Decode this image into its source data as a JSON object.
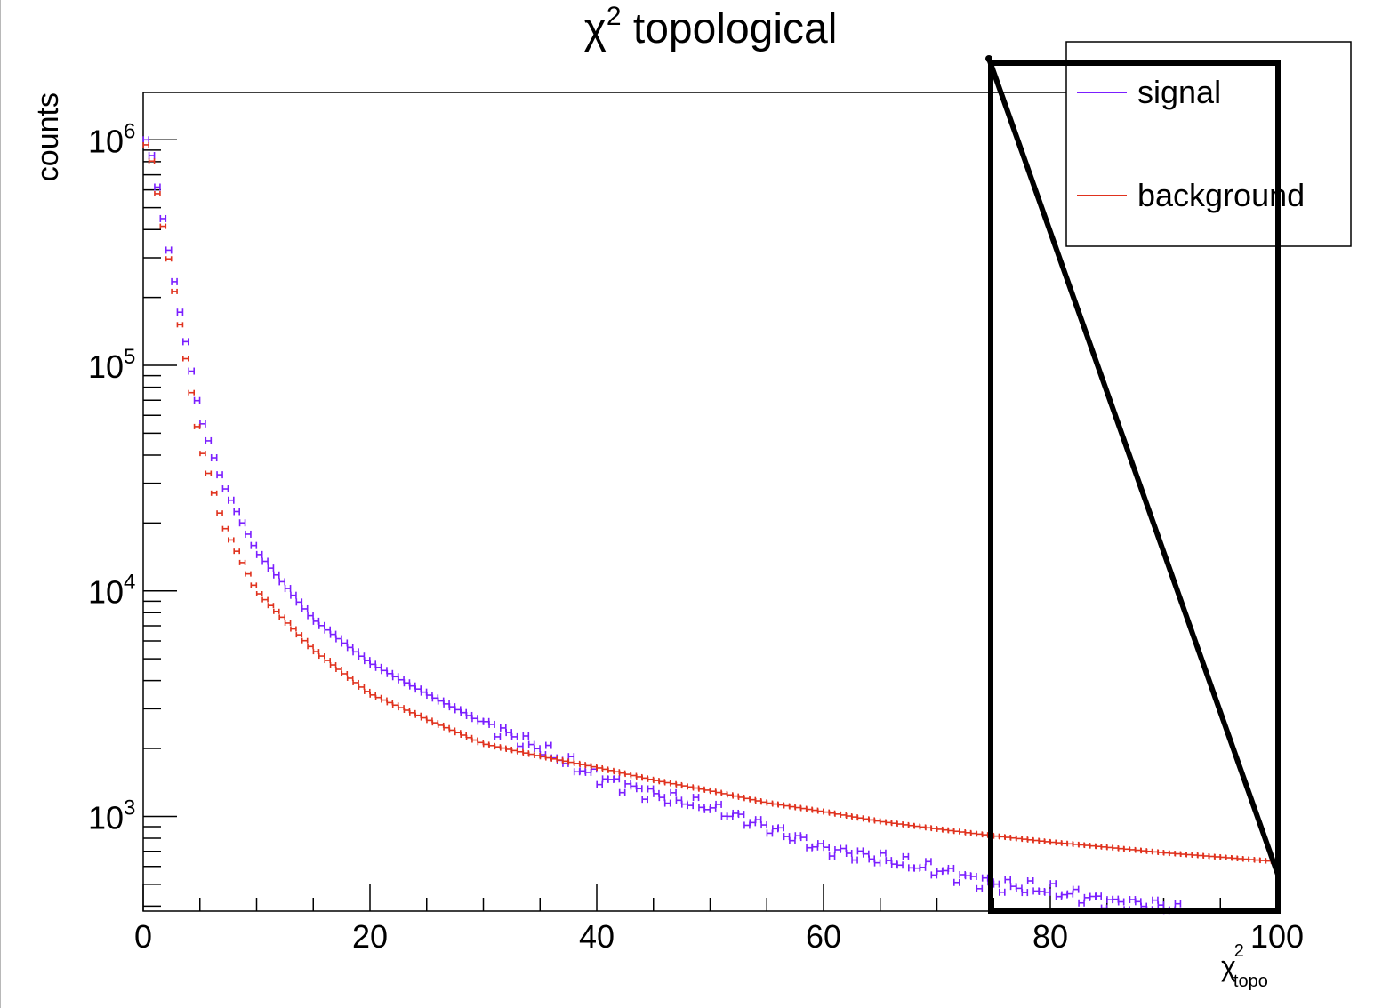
{
  "chart_data": {
    "type": "scatter",
    "title": {
      "base": "χ",
      "sup": "2",
      "rest": " topological"
    },
    "xlabel": {
      "base": "χ",
      "sup": "2",
      "sub": "topo"
    },
    "ylabel": "counts",
    "xlim": [
      0,
      100
    ],
    "ylog": true,
    "ylim_exp": [
      2.58,
      6.21
    ],
    "x_ticks": [
      "0",
      "20",
      "40",
      "60",
      "80",
      "100"
    ],
    "y_ticks": [
      {
        "base": "10",
        "exp": "3"
      },
      {
        "base": "10",
        "exp": "4"
      },
      {
        "base": "10",
        "exp": "5"
      },
      {
        "base": "10",
        "exp": "6"
      }
    ],
    "legend_position": "top-right",
    "legend": [
      {
        "name": "signal",
        "color": "#7b1fff"
      },
      {
        "name": "background",
        "color": "#e0321e"
      }
    ],
    "series": [
      {
        "name": "signal",
        "color": "#7b1fff",
        "x": [
          0.5,
          3,
          5,
          7,
          10,
          15,
          20,
          25,
          30,
          35,
          40,
          45,
          50,
          55,
          60,
          65,
          70,
          75,
          80,
          85,
          90,
          92
        ],
        "y": [
          1000000,
          200000,
          60000,
          30000,
          15000,
          7500,
          4800,
          3500,
          2600,
          2000,
          1500,
          1250,
          1100,
          900,
          720,
          650,
          580,
          500,
          470,
          420,
          400,
          380
        ]
      },
      {
        "name": "background",
        "color": "#e0321e",
        "x": [
          0.5,
          3,
          5,
          7,
          10,
          15,
          20,
          25,
          30,
          35,
          40,
          45,
          50,
          55,
          60,
          65,
          70,
          75,
          80,
          85,
          90,
          95,
          100
        ],
        "y": [
          950000,
          180000,
          45000,
          20000,
          10000,
          5500,
          3500,
          2700,
          2100,
          1850,
          1650,
          1450,
          1300,
          1150,
          1050,
          950,
          880,
          820,
          770,
          730,
          690,
          660,
          630
        ]
      }
    ],
    "annotation": "black overlay box around x 75–100 with a diagonal line"
  }
}
